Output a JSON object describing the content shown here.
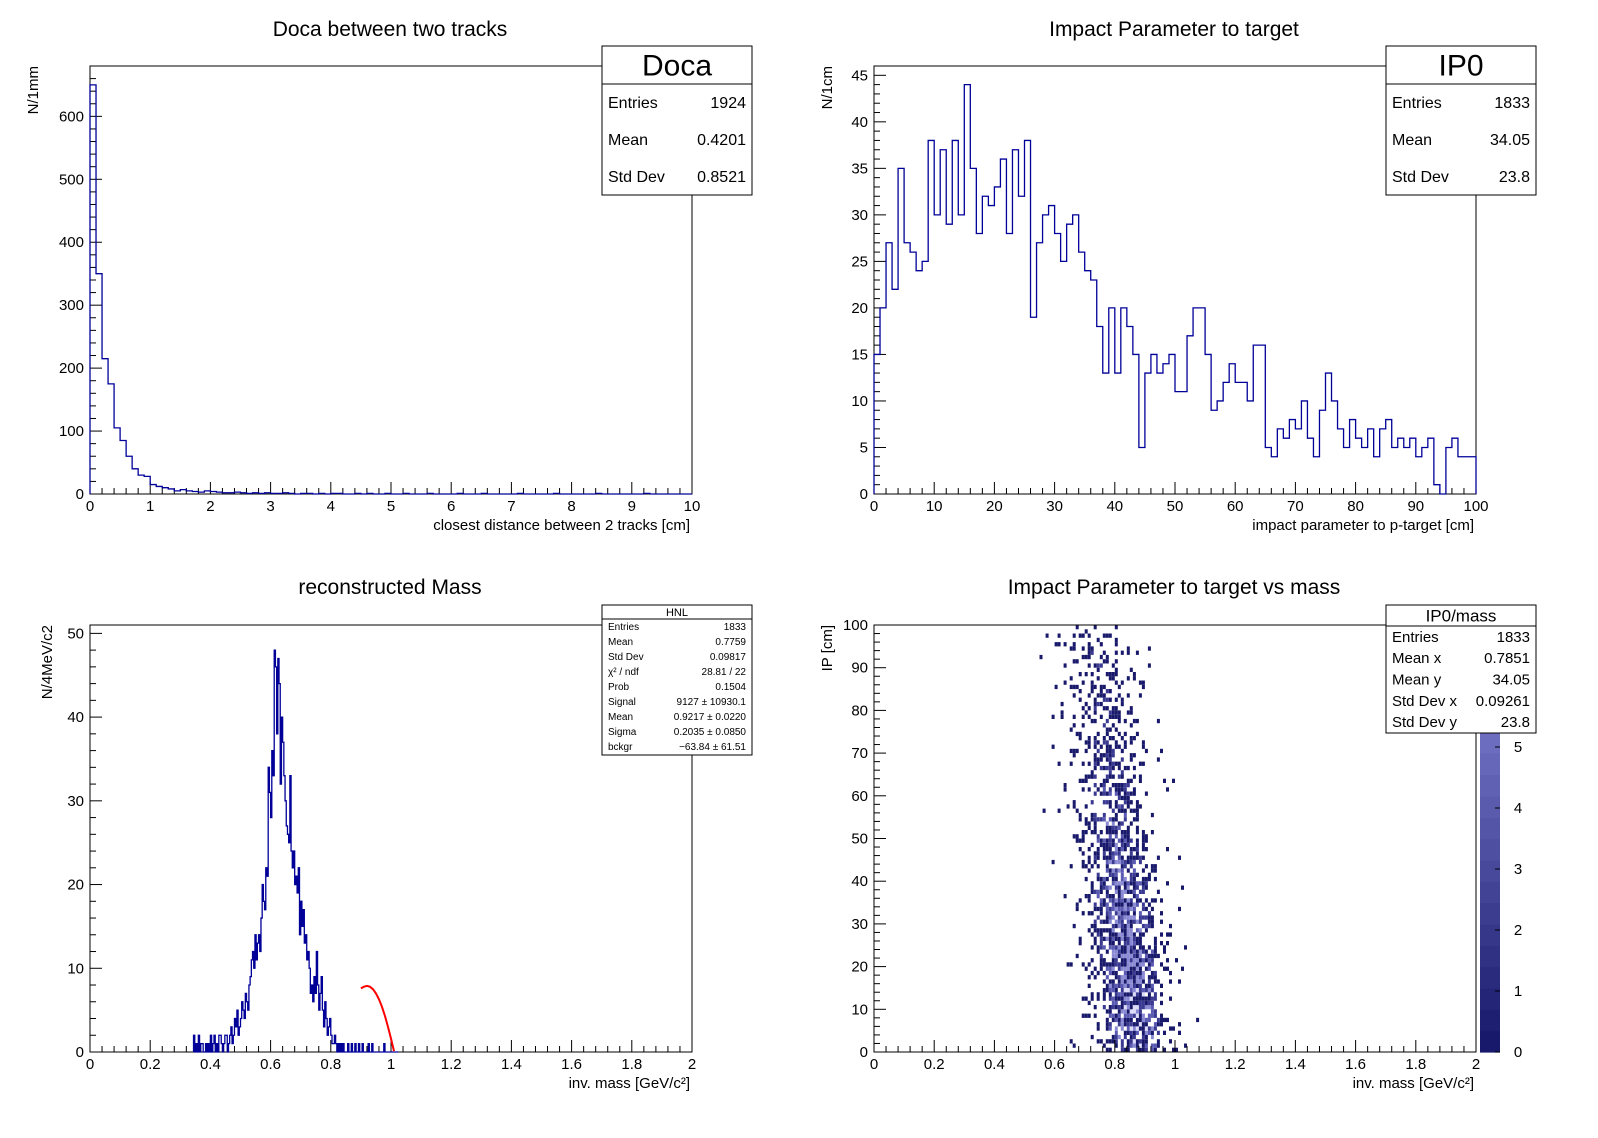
{
  "chart_data": [
    {
      "type": "histogram",
      "title": "Doca between two tracks",
      "xlabel": "closest distance between 2 tracks   [cm]",
      "ylabel": "N/1mm",
      "xlim": [
        0,
        10
      ],
      "ylim": [
        0,
        680
      ],
      "xticks": [
        0,
        1,
        2,
        3,
        4,
        5,
        6,
        7,
        8,
        9,
        10
      ],
      "yticks": [
        0,
        100,
        200,
        300,
        400,
        500,
        600
      ],
      "bin_width": 0.1,
      "values": [
        650,
        350,
        215,
        175,
        105,
        85,
        60,
        40,
        30,
        28,
        15,
        12,
        10,
        8,
        5,
        7,
        5,
        4,
        3,
        5,
        4,
        3,
        2,
        2,
        3,
        2,
        1,
        2,
        1,
        2,
        1,
        1,
        2,
        1,
        0,
        1,
        1,
        0,
        1,
        0,
        1,
        1,
        0,
        0,
        1,
        0,
        1,
        0,
        0,
        1,
        0,
        0,
        1,
        0,
        0,
        0,
        1,
        0,
        0,
        0,
        0,
        1,
        0,
        0,
        0,
        1,
        0,
        0,
        0,
        0,
        0,
        1,
        0,
        0,
        0,
        0,
        0,
        1,
        0,
        0,
        0,
        0,
        0,
        0,
        1,
        0,
        0,
        0,
        0,
        0,
        0,
        0,
        1,
        0,
        0,
        0,
        0,
        0,
        0,
        0
      ],
      "stats": {
        "name": "Doca",
        "rows": [
          [
            "Entries",
            "1924"
          ],
          [
            "Mean",
            "0.4201"
          ],
          [
            "Std Dev",
            "0.8521"
          ]
        ]
      }
    },
    {
      "type": "histogram",
      "title": "Impact Parameter to target",
      "xlabel": "impact parameter to p-target   [cm]",
      "ylabel": "N/1cm",
      "xlim": [
        0,
        100
      ],
      "ylim": [
        0,
        46
      ],
      "xticks": [
        0,
        10,
        20,
        30,
        40,
        50,
        60,
        70,
        80,
        90,
        100
      ],
      "yticks": [
        0,
        5,
        10,
        15,
        20,
        25,
        30,
        35,
        40,
        45
      ],
      "bin_width": 1,
      "values": [
        15,
        20,
        27,
        22,
        35,
        27,
        26,
        24,
        25,
        38,
        30,
        37,
        29,
        38,
        30,
        44,
        35,
        28,
        32,
        31,
        33,
        36,
        28,
        37,
        32,
        38,
        19,
        27,
        30,
        31,
        28,
        25,
        29,
        30,
        26,
        24,
        23,
        18,
        13,
        20,
        13,
        20,
        18,
        15,
        5,
        13,
        15,
        13,
        14,
        15,
        11,
        11,
        17,
        20,
        20,
        15,
        9,
        10,
        12,
        14,
        12,
        12,
        10,
        16,
        16,
        5,
        4,
        7,
        6,
        8,
        7,
        10,
        6,
        4,
        9,
        13,
        10,
        7,
        5,
        8,
        6,
        5,
        7,
        4,
        7,
        8,
        5,
        6,
        5,
        6,
        4,
        5,
        6,
        1,
        0,
        5,
        6,
        4,
        4,
        4
      ],
      "stats": {
        "name": "IP0",
        "rows": [
          [
            "Entries",
            "1833"
          ],
          [
            "Mean",
            "34.05"
          ],
          [
            "Std Dev",
            "23.8"
          ]
        ]
      }
    },
    {
      "type": "histogram",
      "title": "reconstructed Mass",
      "xlabel": "inv. mass  [GeV/c²]",
      "ylabel": "N/4MeV/c2",
      "xlim": [
        0,
        2
      ],
      "ylim": [
        0,
        51
      ],
      "xticks": [
        0,
        0.2,
        0.4,
        0.6,
        0.8,
        1,
        1.2,
        1.4,
        1.6,
        1.8,
        2
      ],
      "yticks": [
        0,
        10,
        20,
        30,
        40,
        50
      ],
      "bin_width": 0.004,
      "bin_start": 0.344,
      "values": [
        2,
        0,
        1,
        0,
        2,
        0,
        1,
        1,
        0,
        0,
        1,
        0,
        1,
        0,
        2,
        0,
        1,
        2,
        0,
        1,
        0,
        2,
        2,
        1,
        0,
        1,
        2,
        2,
        0,
        1,
        2,
        3,
        1,
        2,
        4,
        3,
        5,
        2,
        3,
        4,
        6,
        5,
        4,
        7,
        6,
        5,
        8,
        9,
        11,
        12,
        10,
        14,
        11,
        13,
        14,
        12,
        16,
        20,
        18,
        17,
        22,
        21,
        34,
        31,
        28,
        36,
        33,
        48,
        46,
        38,
        47,
        44,
        32,
        40,
        37,
        33,
        30,
        27,
        26,
        25,
        33,
        24,
        22,
        24,
        20,
        21,
        19,
        22,
        14,
        18,
        15,
        17,
        13,
        14,
        11,
        12,
        10,
        7,
        8,
        6,
        9,
        7,
        12,
        8,
        5,
        7,
        9,
        5,
        3,
        6,
        4,
        2,
        3,
        4,
        2,
        1,
        1,
        2,
        1,
        0,
        1,
        0,
        1,
        0,
        1,
        0,
        0,
        0,
        1,
        0,
        0,
        1,
        0,
        0,
        1,
        0,
        0,
        1,
        0,
        0,
        1,
        0,
        0,
        0,
        0,
        1,
        0,
        0,
        1,
        0,
        0,
        0,
        0,
        0,
        0,
        0,
        0,
        0,
        1,
        0,
        0,
        0,
        0,
        0,
        0,
        0,
        0,
        0,
        0,
        0
      ],
      "fit": {
        "x": [
          0.9,
          0.91,
          0.92,
          0.93,
          0.94,
          0.95,
          0.96,
          0.97,
          0.98,
          0.99,
          1.0,
          1.01
        ],
        "y": [
          7.6,
          7.8,
          7.9,
          7.8,
          7.5,
          7.0,
          6.3,
          5.4,
          4.3,
          3.0,
          1.6,
          0.1
        ],
        "color": "#ff0000"
      },
      "stats": {
        "name": "HNL",
        "rows": [
          [
            "Entries",
            "1833"
          ],
          [
            "Mean",
            "0.7759"
          ],
          [
            "Std Dev",
            "0.09817"
          ],
          [
            "χ² / ndf",
            "28.81 / 22"
          ],
          [
            "Prob",
            "0.1504"
          ],
          [
            "Signal",
            "9127 ± 10930.1"
          ],
          [
            "Mean",
            "0.9217 ± 0.0220"
          ],
          [
            "Sigma",
            "0.2035 ± 0.0850"
          ],
          [
            "bckgr",
            "−63.84 ± 61.51"
          ]
        ]
      }
    },
    {
      "type": "heatmap",
      "title": "Impact Parameter to target vs mass",
      "xlabel": "inv. mass  [GeV/c²]",
      "ylabel": "IP [cm]",
      "xlim": [
        0,
        2
      ],
      "ylim": [
        0,
        100
      ],
      "xticks": [
        0,
        0.2,
        0.4,
        0.6,
        0.8,
        1,
        1.2,
        1.4,
        1.6,
        1.8,
        2
      ],
      "yticks": [
        0,
        10,
        20,
        30,
        40,
        50,
        60,
        70,
        80,
        90,
        100
      ],
      "zlim": [
        0,
        7
      ],
      "zticks": [
        0,
        1,
        2,
        3,
        4,
        5,
        6
      ],
      "colors": [
        "#19196b",
        "#3a3a92",
        "#5a5ab2",
        "#8a8ad4",
        "#dcdcf8"
      ],
      "density": {
        "mass_center": 0.8,
        "mass_sigma": 0.07,
        "ip_mean": 34.05,
        "ip_sigma": 23.8,
        "ip_ridge_peak": 18
      },
      "stats": {
        "name": "IP0/mass",
        "rows": [
          [
            "Entries",
            "1833"
          ],
          [
            "Mean x",
            "0.7851"
          ],
          [
            "Mean y",
            "34.05"
          ],
          [
            "Std Dev x",
            "0.09261"
          ],
          [
            "Std Dev y",
            "23.8"
          ]
        ]
      }
    }
  ]
}
